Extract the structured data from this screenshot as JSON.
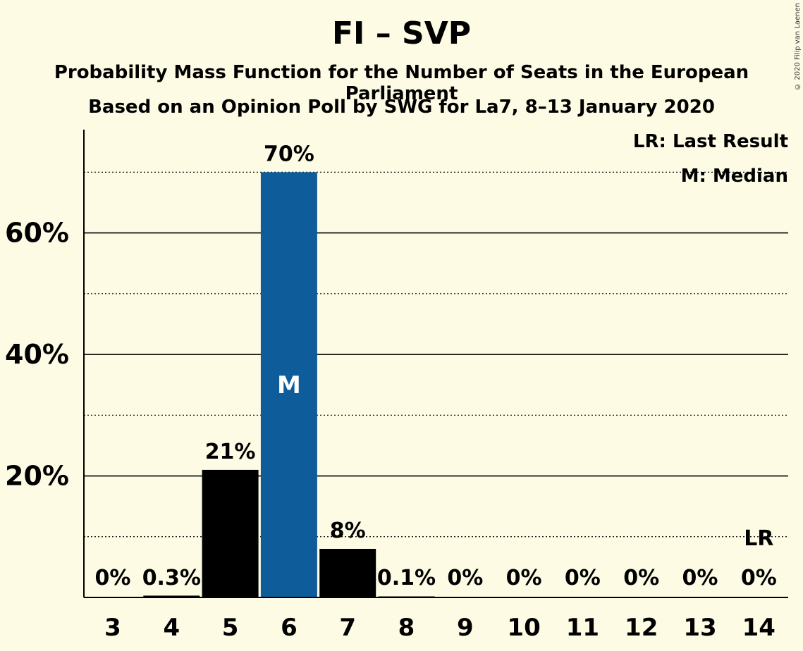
{
  "title": "FI – SVP",
  "subtitle1": "Probability Mass Function for the Number of Seats in the European Parliament",
  "subtitle2": "Based on an Opinion Poll by SWG for La7, 8–13 January 2020",
  "copyright": "© 2020 Filip van Laenen",
  "legend": {
    "lr": "LR: Last Result",
    "m": "M: Median"
  },
  "colors": {
    "background": "#fdfbe4",
    "bar": "#000000",
    "median_bar": "#0e5c9a"
  },
  "chart_data": {
    "type": "bar",
    "categories": [
      "3",
      "4",
      "5",
      "6",
      "7",
      "8",
      "9",
      "10",
      "11",
      "12",
      "13",
      "14"
    ],
    "values": [
      0,
      0.3,
      21,
      70,
      8,
      0.1,
      0,
      0,
      0,
      0,
      0,
      0
    ],
    "data_labels": [
      "0%",
      "0.3%",
      "21%",
      "70%",
      "8%",
      "0.1%",
      "0%",
      "0%",
      "0%",
      "0%",
      "0%",
      "0%"
    ],
    "median_category": "6",
    "median_label": "M",
    "last_result_category": "14",
    "last_result_label": "LR",
    "ylim": [
      0,
      77
    ],
    "yticks": [
      20,
      40,
      60
    ],
    "ytick_labels": [
      "20%",
      "40%",
      "60%"
    ],
    "minor_gridlines": [
      10,
      30,
      50,
      70
    ],
    "xlabel": "",
    "ylabel": ""
  }
}
